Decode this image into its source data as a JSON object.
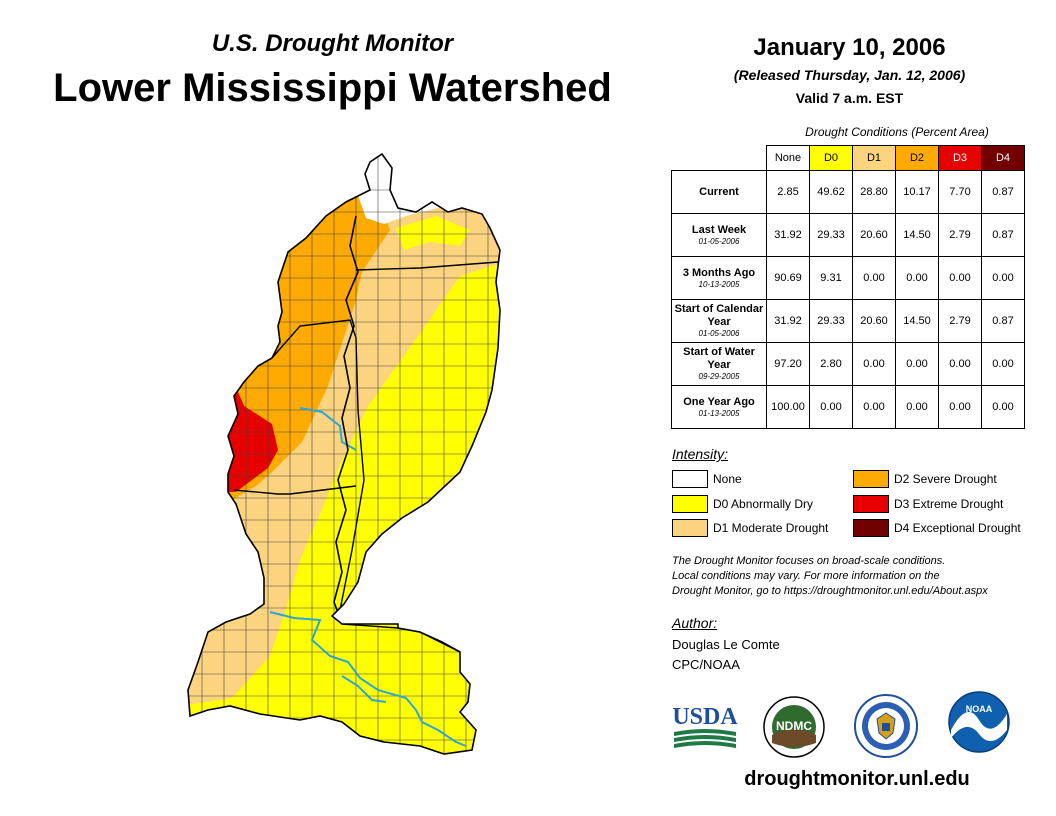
{
  "header": {
    "subtitle": "U.S. Drought Monitor",
    "title": "Lower Mississippi Watershed",
    "date": "January 10, 2006",
    "released": "(Released Thursday, Jan. 12, 2006)",
    "valid": "Valid 7 a.m. EST"
  },
  "table": {
    "caption": "Drought Conditions (Percent Area)",
    "columns": [
      "None",
      "D0",
      "D1",
      "D2",
      "D3",
      "D4"
    ],
    "column_colors": [
      "#ffffff",
      "#ffff00",
      "#fcd37f",
      "#ffaa00",
      "#e60000",
      "#730000"
    ],
    "rows": [
      {
        "label": "Current",
        "sublabel": "",
        "values": [
          "2.85",
          "49.62",
          "28.80",
          "10.17",
          "7.70",
          "0.87"
        ]
      },
      {
        "label": "Last Week",
        "sublabel": "01-05-2006",
        "values": [
          "31.92",
          "29.33",
          "20.60",
          "14.50",
          "2.79",
          "0.87"
        ]
      },
      {
        "label": "3 Months Ago",
        "sublabel": "10-13-2005",
        "values": [
          "90.69",
          "9.31",
          "0.00",
          "0.00",
          "0.00",
          "0.00"
        ]
      },
      {
        "label": "Start of Calendar Year",
        "sublabel": "01-05-2006",
        "values": [
          "31.92",
          "29.33",
          "20.60",
          "14.50",
          "2.79",
          "0.87"
        ]
      },
      {
        "label": "Start of Water Year",
        "sublabel": "09-29-2005",
        "values": [
          "97.20",
          "2.80",
          "0.00",
          "0.00",
          "0.00",
          "0.00"
        ]
      },
      {
        "label": "One Year Ago",
        "sublabel": "01-13-2005",
        "values": [
          "100.00",
          "0.00",
          "0.00",
          "0.00",
          "0.00",
          "0.00"
        ]
      }
    ]
  },
  "legend": {
    "heading": "Intensity:",
    "items": [
      {
        "label": "None",
        "color": "#ffffff"
      },
      {
        "label": "D0 Abnormally Dry",
        "color": "#ffff00"
      },
      {
        "label": "D1 Moderate Drought",
        "color": "#fcd37f"
      },
      {
        "label": "D2 Severe Drought",
        "color": "#ffaa00"
      },
      {
        "label": "D3 Extreme Drought",
        "color": "#e60000"
      },
      {
        "label": "D4 Exceptional Drought",
        "color": "#730000"
      }
    ]
  },
  "note": {
    "line1": "The Drought Monitor focuses on broad-scale conditions.",
    "line2": "Local conditions may vary. For more information on the",
    "line3": "Drought Monitor, go to https://droughtmonitor.unl.edu/About.aspx"
  },
  "author": {
    "heading": "Author:",
    "name": "Douglas Le Comte",
    "org": "CPC/NOAA"
  },
  "logos": {
    "usda": "USDA",
    "ndmc": "NDMC",
    "noaa": "NOAA"
  },
  "website": "droughtmonitor.unl.edu",
  "colors": {
    "river": "#2aa7d8",
    "county_line": "#444444",
    "usda_blue": "#1f4e9c",
    "usda_green": "#1d7a45",
    "noaa_blue": "#1060b0",
    "ndmc_green": "#2f6b2f"
  }
}
